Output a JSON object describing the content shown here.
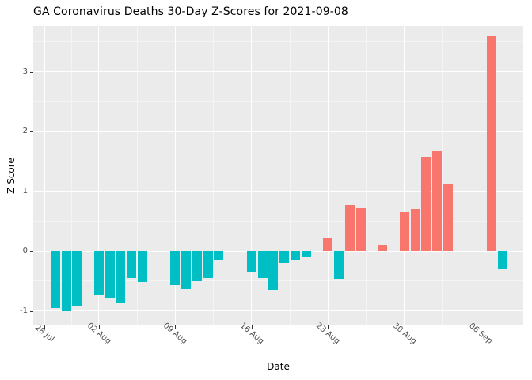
{
  "chart_data": {
    "type": "bar",
    "title": "GA Coronavirus Deaths 30-Day Z-Scores for 2021-09-08",
    "xlabel": "Date",
    "ylabel": "Z Score",
    "ylim": [
      -1.25,
      3.76
    ],
    "x_start_date": "2021-07-28",
    "x_ticks": [
      {
        "label": "28 Jul",
        "day": 0
      },
      {
        "label": "02 Aug",
        "day": 5
      },
      {
        "label": "09 Aug",
        "day": 12
      },
      {
        "label": "16 Aug",
        "day": 19
      },
      {
        "label": "23 Aug",
        "day": 26
      },
      {
        "label": "30 Aug",
        "day": 33
      },
      {
        "label": "06 Sep",
        "day": 40
      }
    ],
    "x_minor_days": [
      2.5,
      8.5,
      15.5,
      22.5,
      29.5,
      36.5,
      43.5
    ],
    "y_ticks": [
      -1,
      0,
      1,
      2,
      3
    ],
    "y_minor_ticks": [
      -0.5,
      0.5,
      1.5,
      2.5,
      3.5
    ],
    "grid": true,
    "legend": "none",
    "colors": {
      "positive": "#F8766D",
      "negative": "#00BFC4",
      "panel_background": "#EBEBEB",
      "gridline": "#FFFFFF",
      "axis_text": "#4D4D4D",
      "title_text": "#000000"
    },
    "points": [
      {
        "date": "2021-07-29",
        "z": -0.95
      },
      {
        "date": "2021-07-30",
        "z": -1.0
      },
      {
        "date": "2021-07-31",
        "z": -0.93
      },
      {
        "date": "2021-08-02",
        "z": -0.73
      },
      {
        "date": "2021-08-03",
        "z": -0.78
      },
      {
        "date": "2021-08-04",
        "z": -0.87
      },
      {
        "date": "2021-08-05",
        "z": -0.45
      },
      {
        "date": "2021-08-06",
        "z": -0.52
      },
      {
        "date": "2021-08-09",
        "z": -0.57
      },
      {
        "date": "2021-08-10",
        "z": -0.63
      },
      {
        "date": "2021-08-11",
        "z": -0.5
      },
      {
        "date": "2021-08-12",
        "z": -0.45
      },
      {
        "date": "2021-08-13",
        "z": -0.15
      },
      {
        "date": "2021-08-16",
        "z": -0.35
      },
      {
        "date": "2021-08-17",
        "z": -0.45
      },
      {
        "date": "2021-08-18",
        "z": -0.65
      },
      {
        "date": "2021-08-19",
        "z": -0.2
      },
      {
        "date": "2021-08-20",
        "z": -0.15
      },
      {
        "date": "2021-08-21",
        "z": -0.1
      },
      {
        "date": "2021-08-23",
        "z": 0.22
      },
      {
        "date": "2021-08-24",
        "z": -0.48
      },
      {
        "date": "2021-08-25",
        "z": 0.77
      },
      {
        "date": "2021-08-26",
        "z": 0.72
      },
      {
        "date": "2021-08-28",
        "z": 0.1
      },
      {
        "date": "2021-08-30",
        "z": 0.65
      },
      {
        "date": "2021-08-31",
        "z": 0.7
      },
      {
        "date": "2021-09-01",
        "z": 1.58
      },
      {
        "date": "2021-09-02",
        "z": 1.67
      },
      {
        "date": "2021-09-03",
        "z": 1.12
      },
      {
        "date": "2021-09-07",
        "z": 3.6
      },
      {
        "date": "2021-09-08",
        "z": -0.3
      }
    ]
  }
}
